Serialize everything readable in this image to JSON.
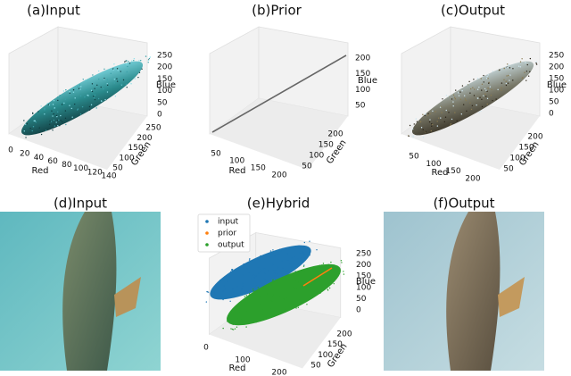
{
  "panels": [
    {
      "title": "(a)Input",
      "x_label": "Red",
      "y_label": "Green",
      "z_label": "Blue",
      "x_ticks": [
        "0",
        "20",
        "40",
        "60",
        "80",
        "100",
        "120",
        "140"
      ],
      "y_ticks": [
        "250",
        "200",
        "150",
        "100",
        "50"
      ],
      "z_ticks": [
        "250",
        "200",
        "150",
        "100",
        "50",
        "0"
      ]
    },
    {
      "title": "(b)Prior",
      "x_label": "Red",
      "y_label": "Green",
      "z_label": "Blue",
      "x_ticks": [
        "50",
        "100",
        "150",
        "200"
      ],
      "y_ticks": [
        "200",
        "150",
        "100",
        "50"
      ],
      "z_ticks": [
        "200",
        "150",
        "100",
        "50"
      ]
    },
    {
      "title": "(c)Output",
      "x_label": "Red",
      "y_label": "Green",
      "z_label": "Blue",
      "x_ticks": [
        "50",
        "100",
        "150",
        "200"
      ],
      "y_ticks": [
        "200",
        "150",
        "100",
        "50"
      ],
      "z_ticks": [
        "250",
        "200",
        "150",
        "100",
        "50",
        "0"
      ]
    },
    {
      "title": "(e)Hybrid",
      "x_label": "Red",
      "y_label": "Green",
      "z_label": "Blue",
      "x_ticks": [
        "0",
        "100",
        "200"
      ],
      "y_ticks": [
        "200",
        "150",
        "100",
        "50"
      ],
      "z_ticks": [
        "250",
        "200",
        "150",
        "100",
        "50",
        "0"
      ],
      "legend": [
        "input",
        "prior",
        "output"
      ]
    }
  ],
  "images": [
    {
      "title": "(d)Input"
    },
    {
      "title": "(f)Output"
    }
  ]
}
